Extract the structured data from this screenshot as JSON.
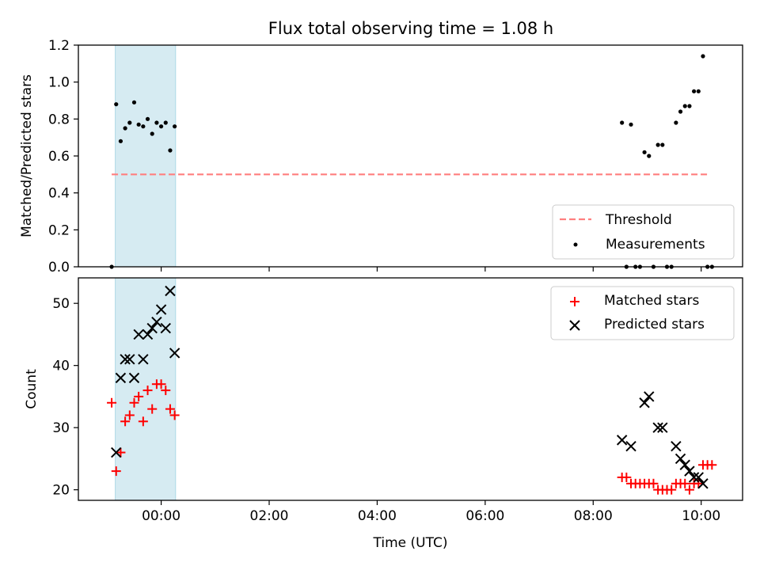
{
  "title": "Flux total observing time = 1.08 h",
  "colors": {
    "shade": "#add8e6",
    "threshold": "#ff7f7f",
    "measurement": "#000000",
    "matched": "#ff0000",
    "predicted": "#000000",
    "axes": "#000000"
  },
  "chart_data": [
    {
      "type": "scatter",
      "ylabel": "Matched/Predicted stars",
      "xlim": [
        "-01:32",
        "10:46"
      ],
      "ylim": [
        0,
        1.2
      ],
      "yticks": [
        0.0,
        0.2,
        0.4,
        0.6,
        0.8,
        1.0,
        1.2
      ],
      "ytick_labels": [
        "0.0",
        "0.2",
        "0.4",
        "0.6",
        "0.8",
        "1.0",
        "1.2"
      ],
      "shaded_interval": [
        "-00:51",
        "00:16"
      ],
      "legend_position": "lower right",
      "threshold": {
        "name": "Threshold",
        "value": 0.5,
        "x_range": [
          "-00:55",
          "10:07"
        ]
      },
      "measurements": {
        "name": "Measurements",
        "points": [
          [
            "-00:55",
            0.0
          ],
          [
            "-00:50",
            0.88
          ],
          [
            "-00:45",
            0.68
          ],
          [
            "-00:40",
            0.75
          ],
          [
            "-00:35",
            0.78
          ],
          [
            "-00:30",
            0.89
          ],
          [
            "-00:25",
            0.77
          ],
          [
            "-00:20",
            0.76
          ],
          [
            "-00:15",
            0.8
          ],
          [
            "-00:10",
            0.72
          ],
          [
            "-00:05",
            0.78
          ],
          [
            "00:00",
            0.76
          ],
          [
            "00:05",
            0.78
          ],
          [
            "00:10",
            0.63
          ],
          [
            "00:15",
            0.76
          ],
          [
            "08:32",
            0.78
          ],
          [
            "08:37",
            0.0
          ],
          [
            "08:42",
            0.77
          ],
          [
            "08:47",
            0.0
          ],
          [
            "08:52",
            0.0
          ],
          [
            "08:57",
            0.62
          ],
          [
            "09:02",
            0.6
          ],
          [
            "09:07",
            0.0
          ],
          [
            "09:12",
            0.66
          ],
          [
            "09:17",
            0.66
          ],
          [
            "09:22",
            0.0
          ],
          [
            "09:27",
            0.0
          ],
          [
            "09:32",
            0.78
          ],
          [
            "09:37",
            0.84
          ],
          [
            "09:42",
            0.87
          ],
          [
            "09:47",
            0.87
          ],
          [
            "09:52",
            0.95
          ],
          [
            "09:57",
            0.95
          ],
          [
            "10:02",
            1.14
          ],
          [
            "10:07",
            0.0
          ],
          [
            "10:12",
            0.0
          ]
        ]
      }
    },
    {
      "type": "scatter",
      "xlabel": "Time (UTC)",
      "ylabel": "Count",
      "xlim": [
        "-01:32",
        "10:46"
      ],
      "ylim": [
        18.3,
        54.1
      ],
      "yticks": [
        20,
        30,
        40,
        50
      ],
      "ytick_labels": [
        "20",
        "30",
        "40",
        "50"
      ],
      "xticks": [
        "00:00",
        "02:00",
        "04:00",
        "06:00",
        "08:00",
        "10:00"
      ],
      "xtick_labels": [
        "00:00",
        "02:00",
        "04:00",
        "06:00",
        "08:00",
        "10:00"
      ],
      "shaded_interval": [
        "-00:51",
        "00:16"
      ],
      "legend_position": "upper right",
      "series": [
        {
          "name": "Matched stars",
          "marker": "plus",
          "points": [
            [
              "-00:55",
              34
            ],
            [
              "-00:50",
              23
            ],
            [
              "-00:45",
              26
            ],
            [
              "-00:40",
              31
            ],
            [
              "-00:35",
              32
            ],
            [
              "-00:30",
              34
            ],
            [
              "-00:25",
              35
            ],
            [
              "-00:20",
              31
            ],
            [
              "-00:15",
              36
            ],
            [
              "-00:10",
              33
            ],
            [
              "-00:05",
              37
            ],
            [
              "00:00",
              37
            ],
            [
              "00:05",
              36
            ],
            [
              "00:10",
              33
            ],
            [
              "00:15",
              32
            ],
            [
              "08:32",
              22
            ],
            [
              "08:37",
              22
            ],
            [
              "08:42",
              21
            ],
            [
              "08:47",
              21
            ],
            [
              "08:52",
              21
            ],
            [
              "08:57",
              21
            ],
            [
              "09:02",
              21
            ],
            [
              "09:07",
              21
            ],
            [
              "09:12",
              20
            ],
            [
              "09:17",
              20
            ],
            [
              "09:22",
              20
            ],
            [
              "09:27",
              20
            ],
            [
              "09:32",
              21
            ],
            [
              "09:37",
              21
            ],
            [
              "09:42",
              21
            ],
            [
              "09:47",
              20
            ],
            [
              "09:52",
              21
            ],
            [
              "09:57",
              21
            ],
            [
              "10:02",
              24
            ],
            [
              "10:07",
              24
            ],
            [
              "10:12",
              24
            ]
          ]
        },
        {
          "name": "Predicted stars",
          "marker": "x",
          "points": [
            [
              "-00:50",
              26
            ],
            [
              "-00:45",
              38
            ],
            [
              "-00:40",
              41
            ],
            [
              "-00:35",
              41
            ],
            [
              "-00:30",
              38
            ],
            [
              "-00:25",
              45
            ],
            [
              "-00:20",
              41
            ],
            [
              "-00:15",
              45
            ],
            [
              "-00:10",
              46
            ],
            [
              "-00:05",
              47
            ],
            [
              "00:00",
              49
            ],
            [
              "00:05",
              46
            ],
            [
              "00:10",
              52
            ],
            [
              "00:15",
              42
            ],
            [
              "08:32",
              28
            ],
            [
              "08:42",
              27
            ],
            [
              "08:57",
              34
            ],
            [
              "09:02",
              35
            ],
            [
              "09:12",
              30
            ],
            [
              "09:17",
              30
            ],
            [
              "09:32",
              27
            ],
            [
              "09:37",
              25
            ],
            [
              "09:42",
              24
            ],
            [
              "09:47",
              23
            ],
            [
              "09:52",
              22
            ],
            [
              "09:57",
              22
            ],
            [
              "10:02",
              21
            ]
          ]
        }
      ]
    }
  ]
}
